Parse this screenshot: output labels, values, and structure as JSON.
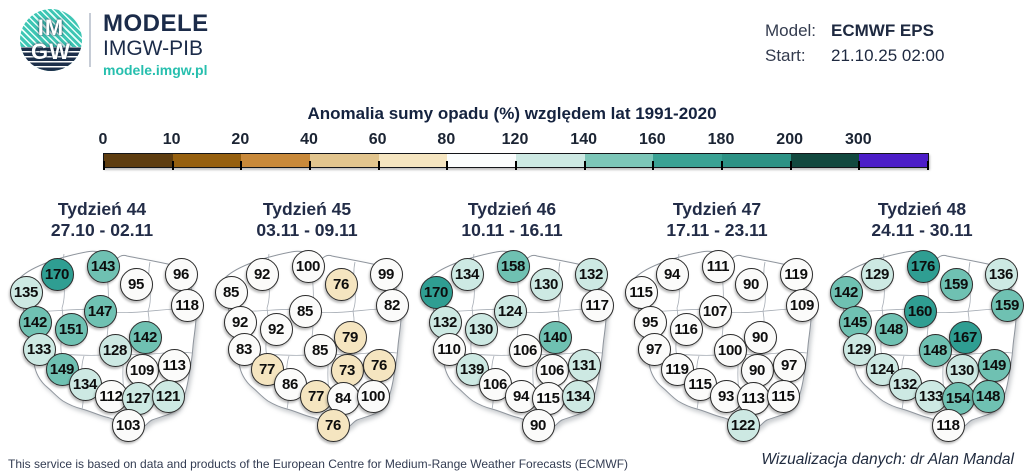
{
  "header": {
    "logo": {
      "text_top": "IM",
      "text_bottom": "GW",
      "brand": "MODELE",
      "subtitle": "IMGW-PIB",
      "url": "modele.imgw.pl"
    },
    "model_label": "Model:",
    "model_value": "ECMWF EPS",
    "start_label": "Start:",
    "start_value": "21.10.25 02:00"
  },
  "chart_data": {
    "type": "heatmap",
    "title": "Anomalia sumy opadu (%) względem lat 1991-2020",
    "unit": "%",
    "reference_period": "1991-2020",
    "colorbar": {
      "tick_labels": [
        "0",
        "10",
        "20",
        "40",
        "60",
        "80",
        "120",
        "140",
        "160",
        "180",
        "200",
        "300"
      ],
      "segment_colors": [
        "#5e3d10",
        "#96600f",
        "#c8893a",
        "#e2c58e",
        "#f5e5c0",
        "#fbfdfd",
        "#cde9e3",
        "#7cc6b8",
        "#3aa294",
        "#2d9285",
        "#12493f",
        "#4c1dc8"
      ]
    },
    "value_color_scale": [
      {
        "max": 80,
        "color": "#f5e5c0"
      },
      {
        "max": 120,
        "color": "#fbfbfa"
      },
      {
        "max": 140,
        "color": "#cde9e3"
      },
      {
        "max": 160,
        "color": "#6fc1b2"
      },
      {
        "max": 180,
        "color": "#2f9e92"
      }
    ],
    "weeks": [
      {
        "title": "Tydzień 44",
        "dates": "27.10 - 02.11",
        "values": [
          135,
          170,
          143,
          95,
          96,
          118,
          147,
          142,
          151,
          142,
          133,
          128,
          149,
          109,
          113,
          134,
          112,
          127,
          121,
          103
        ]
      },
      {
        "title": "Tydzień 45",
        "dates": "03.11 - 09.11",
        "values": [
          85,
          92,
          100,
          76,
          99,
          82,
          85,
          92,
          92,
          79,
          83,
          85,
          77,
          73,
          76,
          86,
          77,
          84,
          100,
          76
        ]
      },
      {
        "title": "Tydzień 46",
        "dates": "10.11 - 16.11",
        "values": [
          170,
          134,
          158,
          130,
          132,
          117,
          124,
          132,
          130,
          140,
          110,
          106,
          139,
          106,
          131,
          106,
          94,
          115,
          134,
          90
        ]
      },
      {
        "title": "Tydzień 47",
        "dates": "17.11 - 23.11",
        "values": [
          115,
          94,
          111,
          90,
          119,
          109,
          107,
          95,
          116,
          90,
          97,
          100,
          119,
          90,
          97,
          115,
          93,
          113,
          115,
          122
        ]
      },
      {
        "title": "Tydzień 48",
        "dates": "24.11 - 30.11",
        "values": [
          142,
          129,
          176,
          159,
          136,
          159,
          160,
          145,
          148,
          167,
          129,
          148,
          124,
          130,
          149,
          132,
          133,
          154,
          148,
          118
        ]
      }
    ]
  },
  "footer": {
    "left": "This service is based on data and products of the European Centre for Medium-Range Weather Forecasts (ECMWF)",
    "right": "Wizualizacja danych: dr Alan Mandal"
  }
}
